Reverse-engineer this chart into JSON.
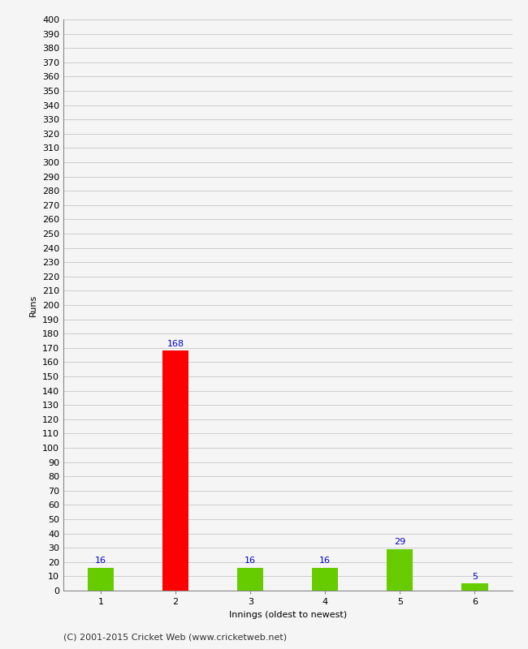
{
  "categories": [
    "1",
    "2",
    "3",
    "4",
    "5",
    "6"
  ],
  "values": [
    16,
    168,
    16,
    16,
    29,
    5
  ],
  "bar_colors": [
    "#66cc00",
    "#ff0000",
    "#66cc00",
    "#66cc00",
    "#66cc00",
    "#66cc00"
  ],
  "ylabel": "Runs",
  "xlabel": "Innings (oldest to newest)",
  "ylim": [
    0,
    400
  ],
  "yticks": [
    0,
    10,
    20,
    30,
    40,
    50,
    60,
    70,
    80,
    90,
    100,
    110,
    120,
    130,
    140,
    150,
    160,
    170,
    180,
    190,
    200,
    210,
    220,
    230,
    240,
    250,
    260,
    270,
    280,
    290,
    300,
    310,
    320,
    330,
    340,
    350,
    360,
    370,
    380,
    390,
    400
  ],
  "label_color": "#0000cc",
  "background_color": "#f5f5f5",
  "grid_color": "#cccccc",
  "footer": "(C) 2001-2015 Cricket Web (www.cricketweb.net)"
}
